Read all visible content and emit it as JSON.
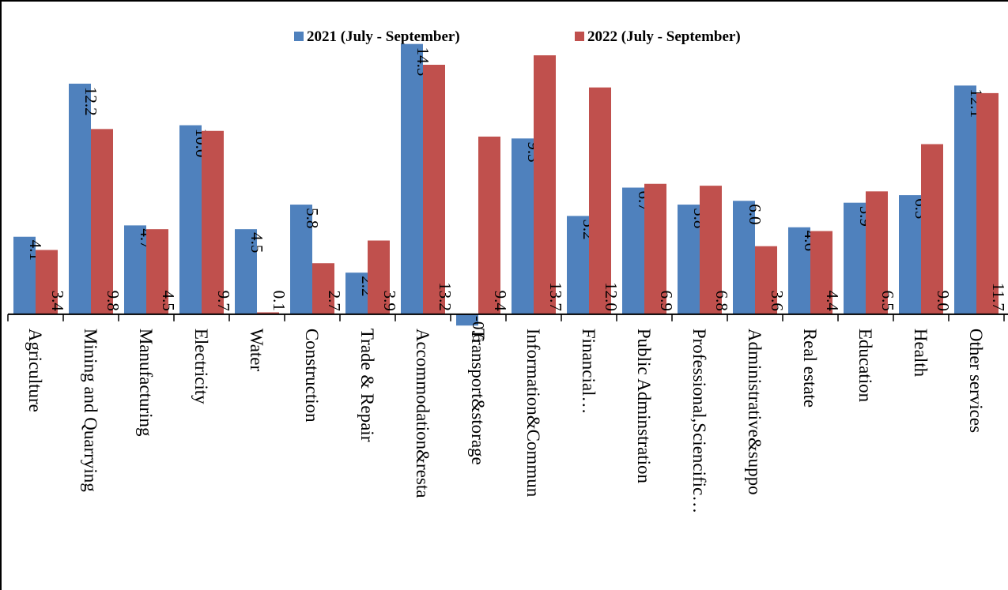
{
  "chart_data": {
    "type": "bar",
    "categories": [
      "Agriculture",
      "Mining and Quarrying",
      "Manufacturing",
      "Electricity",
      "Water",
      "Construction",
      "Trade & Repair",
      "Accommodation&resta",
      "Transport&storage",
      "Information&Commun",
      "Financial…",
      "Public Adminstration",
      "Professional,Sciencific…",
      "Administrative&suppo",
      "Real estate",
      "Education",
      "Health",
      "Other services"
    ],
    "series": [
      {
        "name": "2021 (July - September)",
        "color": "#4f81bd",
        "values": [
          4.1,
          12.2,
          4.7,
          10.0,
          4.5,
          5.8,
          2.2,
          14.3,
          -0.6,
          9.3,
          5.2,
          6.7,
          5.8,
          6.0,
          4.6,
          5.9,
          6.3,
          12.1
        ],
        "value_labels": [
          "4.1",
          "12.2",
          "4.7",
          "10.0",
          "4.5",
          "5.8",
          "2.2",
          "14.3",
          "-0.6",
          "9.3",
          "5.2",
          "6.7",
          "5.8",
          "6.0",
          "4.6",
          "5.9",
          "6.3",
          "12.1"
        ]
      },
      {
        "name": "2022 (July - September)",
        "color": "#c0504d",
        "values": [
          3.4,
          9.8,
          4.5,
          9.7,
          0.1,
          2.7,
          3.9,
          13.2,
          9.4,
          13.7,
          12.0,
          6.9,
          6.8,
          3.6,
          4.4,
          6.5,
          9.0,
          11.7
        ],
        "value_labels": [
          "3.4",
          "9.8",
          "4.5",
          "9.7",
          "0.1",
          "2.7",
          "3.9",
          "13.2",
          "9.4",
          "13.7",
          "12.0",
          "6.9",
          "6.8",
          "3.6",
          "4.4",
          "6.5",
          "9.0",
          "11.7"
        ]
      }
    ],
    "ylim": [
      -2,
      16
    ],
    "legend": "top"
  }
}
